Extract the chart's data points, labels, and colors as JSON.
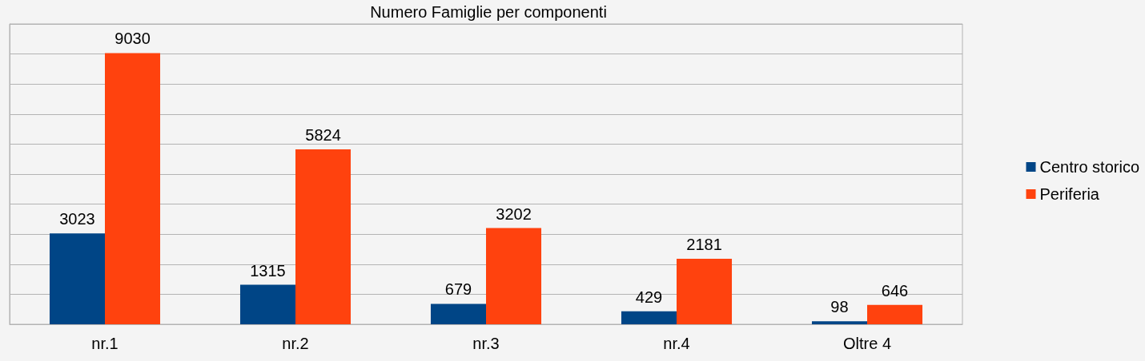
{
  "chart_data": {
    "type": "bar",
    "title": "Numero Famiglie per componenti",
    "categories": [
      "nr.1",
      "nr.2",
      "nr.3",
      "nr.4",
      "Oltre 4"
    ],
    "series": [
      {
        "name": "Centro storico",
        "color": "#004586",
        "values": [
          3023,
          1315,
          679,
          429,
          98
        ]
      },
      {
        "name": "Periferia",
        "color": "#ff420e",
        "values": [
          9030,
          5824,
          3202,
          2181,
          646
        ]
      }
    ],
    "ylim": [
      0,
      10000
    ],
    "yticks": [
      {
        "value": 0,
        "label": null
      },
      {
        "value": 1000,
        "label": null
      },
      {
        "value": 2000,
        "label": null
      },
      {
        "value": 3000,
        "label": null
      },
      {
        "value": 4000,
        "label": null
      },
      {
        "value": 5000,
        "label": null
      },
      {
        "value": 6000,
        "label": null
      },
      {
        "value": 7000,
        "label": null
      },
      {
        "value": 8000,
        "label": null
      },
      {
        "value": 9000,
        "label": null
      },
      {
        "value": 10000,
        "label": null
      }
    ],
    "tick_labels": "x",
    "grid": "y",
    "legend": "right",
    "data_labels": true
  }
}
